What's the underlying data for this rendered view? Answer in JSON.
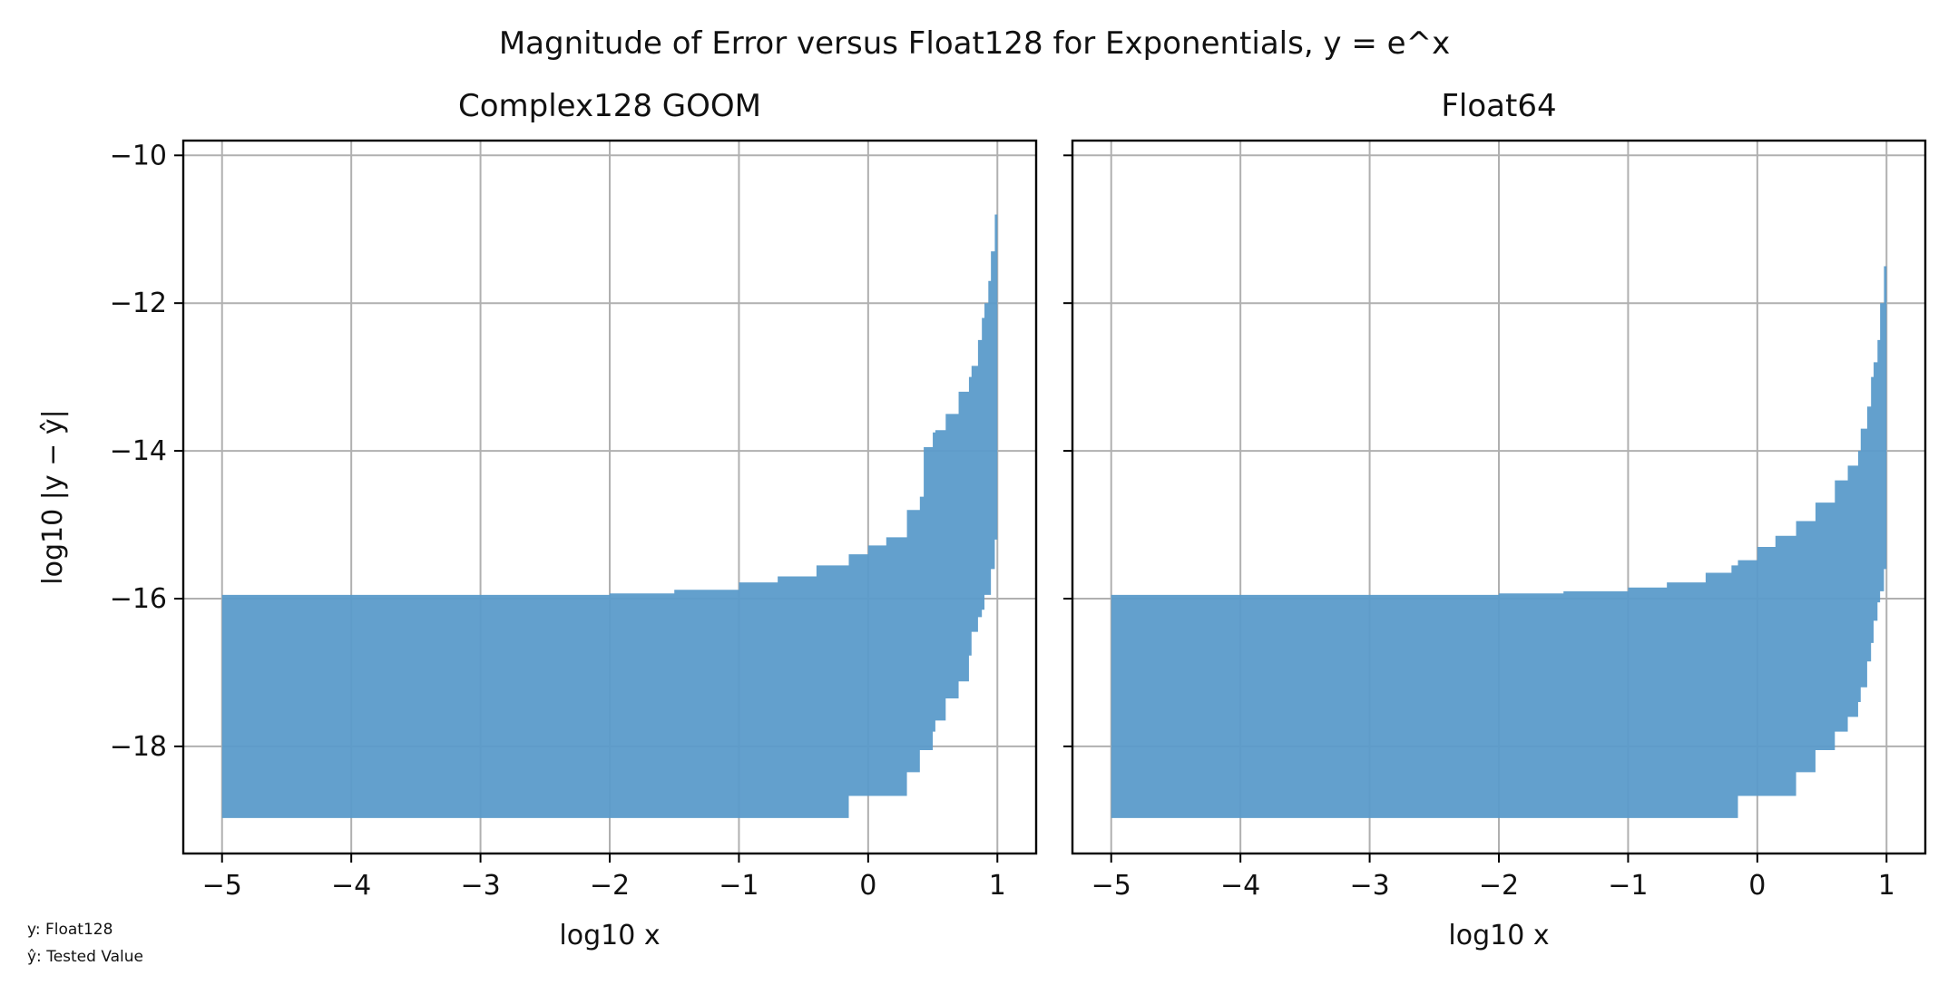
{
  "figure": {
    "suptitle": "Magnitude of Error versus Float128 for Exponentials, y = e^x",
    "footnote": [
      "y: Float128",
      "ŷ: Tested Value"
    ]
  },
  "chart_data": [
    {
      "type": "area",
      "title": "Complex128 GOOM",
      "xlabel": "log10 x",
      "ylabel": "log10 |y − ŷ|",
      "xlim": [
        -5.3,
        1.3
      ],
      "ylim": [
        -19.45,
        -9.8
      ],
      "xticks": [
        -5,
        -4,
        -3,
        -2,
        -1,
        0,
        1
      ],
      "yticks": [
        -18,
        -16,
        -14,
        -12,
        -10
      ],
      "grid": true,
      "color": "#5b9bca",
      "series": [
        {
          "x": [
            -5.0,
            -4.0,
            -3.0,
            -2.0,
            -1.5,
            -1.0,
            -0.7,
            -0.4,
            -0.2,
            -0.15,
            0.0,
            0.14,
            0.3,
            0.4,
            0.43,
            0.5,
            0.52,
            0.6,
            0.7,
            0.78,
            0.8,
            0.85,
            0.88,
            0.9,
            0.93,
            0.95,
            0.98,
            1.0
          ],
          "upper": [
            -15.95,
            -15.95,
            -15.95,
            -15.93,
            -15.88,
            -15.78,
            -15.7,
            -15.55,
            -15.55,
            -15.4,
            -15.28,
            -15.17,
            -14.8,
            -14.62,
            -13.95,
            -13.75,
            -13.72,
            -13.5,
            -13.2,
            -13.0,
            -12.85,
            -12.5,
            -12.2,
            -12.0,
            -11.7,
            -11.3,
            -10.8,
            -10.2
          ],
          "lower": [
            -18.97,
            -18.97,
            -18.97,
            -18.97,
            -18.97,
            -18.97,
            -18.97,
            -18.97,
            -18.97,
            -18.67,
            -18.67,
            -18.67,
            -18.35,
            -18.05,
            -18.05,
            -17.8,
            -17.65,
            -17.35,
            -17.12,
            -16.77,
            -16.45,
            -16.25,
            -16.15,
            -15.95,
            -15.95,
            -15.6,
            -15.2,
            -14.75
          ]
        }
      ]
    },
    {
      "type": "area",
      "title": "Float64",
      "xlabel": "log10 x",
      "xlim": [
        -5.3,
        1.3
      ],
      "ylim": [
        -19.45,
        -9.8
      ],
      "xticks": [
        -5,
        -4,
        -3,
        -2,
        -1,
        0,
        1
      ],
      "yticks": [
        -18,
        -16,
        -14,
        -12,
        -10
      ],
      "grid": true,
      "color": "#5b9bca",
      "series": [
        {
          "x": [
            -5.0,
            -4.0,
            -3.0,
            -2.0,
            -1.5,
            -1.0,
            -0.7,
            -0.4,
            -0.2,
            -0.15,
            0.0,
            0.14,
            0.3,
            0.45,
            0.6,
            0.7,
            0.78,
            0.8,
            0.85,
            0.88,
            0.9,
            0.93,
            0.95,
            0.98,
            1.0
          ],
          "upper": [
            -15.95,
            -15.95,
            -15.95,
            -15.93,
            -15.9,
            -15.85,
            -15.78,
            -15.65,
            -15.55,
            -15.48,
            -15.3,
            -15.15,
            -14.95,
            -14.7,
            -14.4,
            -14.2,
            -14.0,
            -13.7,
            -13.4,
            -13.0,
            -12.8,
            -12.5,
            -12.0,
            -11.5,
            -10.65
          ],
          "lower": [
            -18.97,
            -18.97,
            -18.97,
            -18.97,
            -18.97,
            -18.97,
            -18.97,
            -18.97,
            -18.97,
            -18.67,
            -18.67,
            -18.67,
            -18.35,
            -18.05,
            -17.8,
            -17.6,
            -17.4,
            -17.2,
            -16.85,
            -16.6,
            -16.3,
            -16.05,
            -15.9,
            -15.6,
            -15.05
          ]
        }
      ]
    }
  ]
}
